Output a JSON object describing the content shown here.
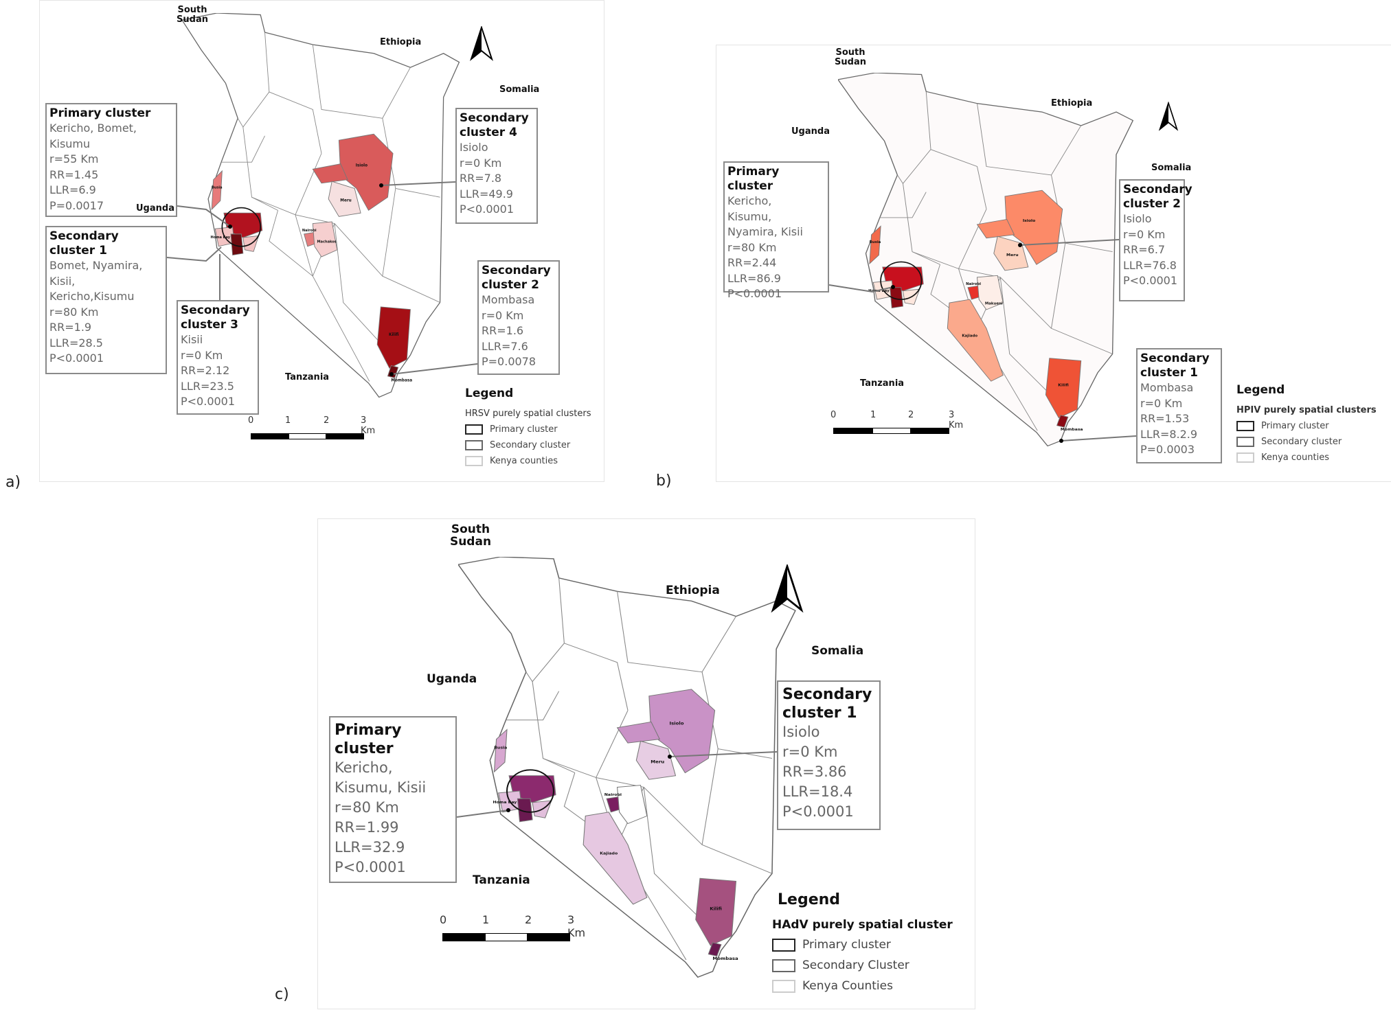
{
  "panels": {
    "a": {
      "label": "a)",
      "countries": {
        "south_sudan": "South Sudan",
        "ethiopia": "Ethiopia",
        "somalia": "Somalia",
        "uganda": "Uganda",
        "tanzania": "Tanzania"
      },
      "clusters": {
        "primary": {
          "title": "Primary cluster",
          "lines": [
            "Kericho, Bomet,",
            "Kisumu",
            "r=55 Km",
            "RR=1.45",
            "LLR=6.9",
            "P=0.0017"
          ]
        },
        "secondary1": {
          "title": "Secondary cluster 1",
          "lines": [
            "Bomet, Nyamira,",
            "Kisii,",
            "Kericho,Kisumu",
            "r=80 Km",
            "RR=1.9",
            "LLR=28.5",
            "P<0.0001"
          ]
        },
        "secondary2": {
          "title": "Secondary cluster 2",
          "lines": [
            "Mombasa",
            "r=0 Km",
            "RR=1.6",
            "LLR=7.6",
            "P=0.0078"
          ]
        },
        "secondary3": {
          "title": "Secondary cluster 3",
          "lines": [
            "Kisii",
            "r=0 Km",
            "RR=2.12",
            "LLR=23.5",
            "P<0.0001"
          ]
        },
        "secondary4": {
          "title": "Secondary cluster 4",
          "lines": [
            "Isiolo",
            "r=0 Km",
            "RR=7.8",
            "LLR=49.9",
            "P<0.0001"
          ]
        }
      },
      "county_labels": {
        "isiolo": "Isiolo",
        "kilifi": "Kilifi",
        "mombasa": "Mombasa",
        "homa_bay": "Homa Bay",
        "meru": "Meru",
        "nairobi": "Nairobi",
        "machakos": "Machakos",
        "busia": "Busia"
      },
      "legend": {
        "title": "Legend",
        "subtitle": "HRSV purely spatial clusters",
        "items": [
          "Primary cluster",
          "Secondary cluster",
          "Kenya counties"
        ]
      },
      "scale": [
        "0",
        "1",
        "2",
        "3 Km"
      ],
      "colors": {
        "isiolo": "#d95b5b",
        "kilifi": "#a50f15",
        "west_dark": "#b2121f",
        "west_darker": "#6e0a10",
        "west_light": "#f3c3c3",
        "busia": "#e77a7a",
        "meru": "#f6e0e0",
        "central": "#e57d7d",
        "central_light": "#f6cfcf"
      }
    },
    "b": {
      "label": "b)",
      "countries": {
        "south_sudan": "South Sudan",
        "ethiopia": "Ethiopia",
        "somalia": "Somalia",
        "uganda": "Uganda",
        "tanzania": "Tanzania"
      },
      "clusters": {
        "primary": {
          "title": "Primary cluster",
          "lines": [
            "Kericho,",
            "Kisumu,",
            "Nyamira, Kisii",
            "r=80 Km",
            "RR=2.44",
            "LLR=86.9",
            "P<0.0001"
          ]
        },
        "secondary1": {
          "title": "Secondary cluster 1",
          "lines": [
            "Mombasa",
            "r=0 Km",
            "RR=1.53",
            "LLR=8.2.9",
            "P=0.0003"
          ]
        },
        "secondary2": {
          "title": "Secondary cluster 2",
          "lines": [
            "Isiolo",
            "r=0 Km",
            "RR=6.7",
            "LLR=76.8",
            "P<0.0001"
          ]
        }
      },
      "county_labels": {
        "isiolo": "Isiolo",
        "kilifi": "Kilifi",
        "mombasa": "Mombasa",
        "homa_bay": "Homa Bay",
        "meru": "Meru",
        "nairobi": "Nairobi",
        "kajiado": "Kajiado",
        "makueni": "Makueni",
        "busia": "Busia"
      },
      "legend": {
        "title": "Legend",
        "subtitle": "HPIV purely spatial clusters",
        "items": [
          "Primary cluster",
          "Secondary cluster",
          "Kenya counties"
        ]
      },
      "scale": [
        "0",
        "1",
        "2",
        "3 Km"
      ],
      "colors": {
        "isiolo": "#fc8a68",
        "kilifi": "#ef5336",
        "west_dark": "#c8101e",
        "west_darker": "#8a0a14",
        "west_light": "#fde6dd",
        "busia": "#f26a4b",
        "meru": "#fcd3c0",
        "central": "#e8322a",
        "central_light": "#fdeee8",
        "kajiado": "#fba98c",
        "base": "#fdfafa"
      }
    },
    "c": {
      "label": "c)",
      "countries": {
        "south_sudan": "South Sudan",
        "ethiopia": "Ethiopia",
        "somalia": "Somalia",
        "uganda": "Uganda",
        "tanzania": "Tanzania"
      },
      "clusters": {
        "primary": {
          "title": "Primary cluster",
          "lines": [
            "Kericho,",
            "Kisumu, Kisii",
            "r=80 Km",
            "RR=1.99",
            "LLR=32.9",
            "P<0.0001"
          ]
        },
        "secondary1": {
          "title": "Secondary cluster 1",
          "lines": [
            "Isiolo",
            "r=0 Km",
            "RR=3.86",
            "LLR=18.4",
            "P<0.0001"
          ]
        }
      },
      "county_labels": {
        "isiolo": "Isiolo",
        "kilifi": "Kilifi",
        "mombasa": "Mombasa",
        "homa_bay": "Homa Bay",
        "meru": "Meru",
        "nairobi": "Nairobi",
        "kajiado": "Kajiado",
        "busia": "Busia"
      },
      "legend": {
        "title": "Legend",
        "subtitle": "HAdV purely spatial cluster",
        "items": [
          "Primary cluster",
          "Secondary Cluster",
          "Kenya Counties"
        ]
      },
      "scale": [
        "0",
        "1",
        "2",
        "3 Km"
      ],
      "colors": {
        "isiolo": "#c992c6",
        "kilifi": "#a5517f",
        "west_dark": "#8c2a6e",
        "west_darker": "#6a1a50",
        "west_light": "#e2bfdc",
        "busia": "#d7a7d0",
        "meru": "#e7cde3",
        "central": "#7a1e60",
        "central_light": "#ffffff",
        "kajiado": "#e6c8e1",
        "base": "#ffffff"
      }
    }
  }
}
